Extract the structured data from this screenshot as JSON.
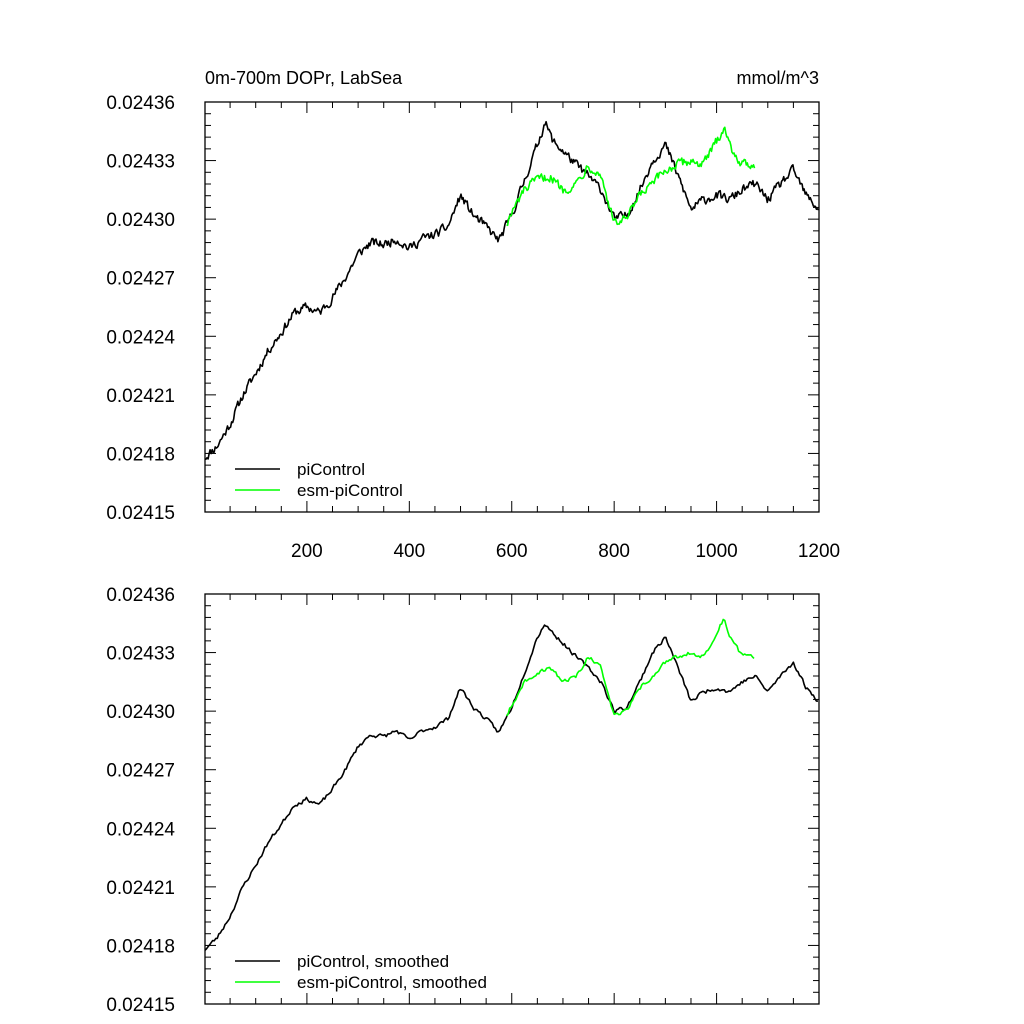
{
  "chart_data": [
    {
      "type": "line",
      "title": "0m-700m DOPr, LabSea",
      "units": "mmol/m^3",
      "xlim": [
        1,
        1200
      ],
      "ylim": [
        0.02415,
        0.02436
      ],
      "x_ticks": [
        200,
        400,
        600,
        800,
        1000,
        1200
      ],
      "y_ticks": [
        "0.02415",
        "0.02418",
        "0.02421",
        "0.02424",
        "0.02427",
        "0.02430",
        "0.02433",
        "0.02436"
      ],
      "legend_position": "bottom-left",
      "series": [
        {
          "name": "piControl",
          "color": "#000000",
          "x": [
            1,
            25,
            50,
            75,
            100,
            125,
            150,
            175,
            200,
            225,
            250,
            275,
            300,
            325,
            350,
            375,
            400,
            425,
            450,
            475,
            500,
            525,
            550,
            575,
            600,
            625,
            650,
            665,
            680,
            700,
            725,
            750,
            775,
            800,
            825,
            850,
            875,
            900,
            925,
            950,
            975,
            1000,
            1025,
            1050,
            1075,
            1100,
            1125,
            1150,
            1175,
            1200
          ],
          "y": [
            0.024178,
            0.024184,
            0.024195,
            0.02421,
            0.024221,
            0.024233,
            0.024242,
            0.024252,
            0.024255,
            0.024252,
            0.02426,
            0.02427,
            0.024282,
            0.024288,
            0.024287,
            0.02429,
            0.024285,
            0.02429,
            0.024292,
            0.024296,
            0.024312,
            0.024302,
            0.024296,
            0.024289,
            0.024302,
            0.02432,
            0.024338,
            0.02435,
            0.02434,
            0.024335,
            0.024328,
            0.024322,
            0.024315,
            0.0243,
            0.024302,
            0.024315,
            0.02433,
            0.024338,
            0.024322,
            0.024305,
            0.02431,
            0.024312,
            0.02431,
            0.024315,
            0.024318,
            0.02431,
            0.024318,
            0.024325,
            0.024312,
            0.024305
          ]
        },
        {
          "name": "esm-piControl",
          "color": "#00ff00",
          "x": [
            590,
            600,
            625,
            650,
            675,
            700,
            725,
            750,
            775,
            800,
            825,
            850,
            875,
            900,
            925,
            950,
            975,
            1000,
            1015,
            1025,
            1050,
            1075
          ],
          "y": [
            0.024298,
            0.024303,
            0.024315,
            0.02432,
            0.024322,
            0.024315,
            0.024318,
            0.024328,
            0.024322,
            0.024298,
            0.0243,
            0.024312,
            0.024318,
            0.024325,
            0.024328,
            0.02433,
            0.024328,
            0.02434,
            0.024348,
            0.024338,
            0.024328,
            0.024328
          ]
        }
      ]
    },
    {
      "type": "line",
      "title": "",
      "units": "",
      "xlim": [
        1,
        1200
      ],
      "ylim": [
        0.02415,
        0.02436
      ],
      "y_ticks": [
        "0.02415",
        "0.02418",
        "0.02421",
        "0.02424",
        "0.02427",
        "0.02430",
        "0.02433",
        "0.02436"
      ],
      "legend_position": "bottom-left",
      "series": [
        {
          "name": "piControl, smoothed",
          "color": "#000000",
          "x": [
            1,
            25,
            50,
            75,
            100,
            125,
            150,
            175,
            200,
            225,
            250,
            275,
            300,
            325,
            350,
            375,
            400,
            425,
            450,
            475,
            500,
            525,
            550,
            575,
            600,
            625,
            650,
            665,
            680,
            700,
            725,
            750,
            775,
            800,
            825,
            850,
            875,
            900,
            925,
            950,
            975,
            1000,
            1025,
            1050,
            1075,
            1100,
            1125,
            1150,
            1175,
            1200
          ],
          "y": [
            0.024178,
            0.024184,
            0.024195,
            0.02421,
            0.024221,
            0.024233,
            0.024242,
            0.024252,
            0.024255,
            0.024252,
            0.02426,
            0.02427,
            0.024282,
            0.024288,
            0.024287,
            0.02429,
            0.024285,
            0.02429,
            0.024292,
            0.024296,
            0.024312,
            0.024302,
            0.024296,
            0.024289,
            0.024302,
            0.02432,
            0.024338,
            0.024345,
            0.02434,
            0.024335,
            0.024328,
            0.024322,
            0.024315,
            0.0243,
            0.024302,
            0.024315,
            0.02433,
            0.024338,
            0.024322,
            0.024305,
            0.02431,
            0.024312,
            0.02431,
            0.024315,
            0.024318,
            0.02431,
            0.024318,
            0.024325,
            0.024312,
            0.024305
          ]
        },
        {
          "name": "esm-piControl, smoothed",
          "color": "#00ff00",
          "x": [
            590,
            600,
            625,
            650,
            675,
            700,
            725,
            750,
            775,
            800,
            825,
            850,
            875,
            900,
            925,
            950,
            975,
            1000,
            1015,
            1025,
            1050,
            1075
          ],
          "y": [
            0.024298,
            0.024303,
            0.024315,
            0.02432,
            0.024322,
            0.024315,
            0.024318,
            0.024328,
            0.024322,
            0.024298,
            0.0243,
            0.024312,
            0.024318,
            0.024325,
            0.024328,
            0.02433,
            0.024328,
            0.02434,
            0.024348,
            0.024338,
            0.024328,
            0.024328
          ]
        }
      ]
    }
  ]
}
